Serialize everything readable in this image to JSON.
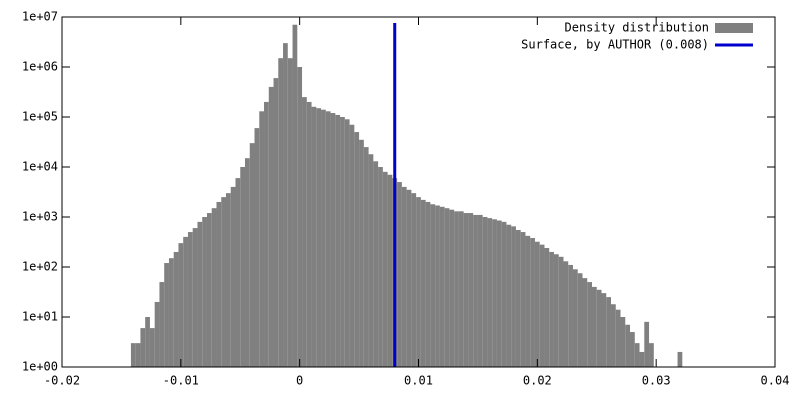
{
  "chart_data": {
    "type": "histogram",
    "bins": [
      -0.0142,
      -0.0138,
      -0.0134,
      -0.013,
      -0.0126,
      -0.0122,
      -0.0118,
      -0.0114,
      -0.011,
      -0.0106,
      -0.0102,
      -0.0098,
      -0.0094,
      -0.009,
      -0.0086,
      -0.0082,
      -0.0078,
      -0.0074,
      -0.007,
      -0.0066,
      -0.0062,
      -0.0058,
      -0.0054,
      -0.005,
      -0.0046,
      -0.0042,
      -0.0038,
      -0.0034,
      -0.003,
      -0.0026,
      -0.0022,
      -0.0018,
      -0.0014,
      -0.001,
      -0.0006,
      -0.0002,
      0.0002,
      0.0006,
      0.001,
      0.0014,
      0.0018,
      0.0022,
      0.0026,
      0.003,
      0.0034,
      0.0038,
      0.0042,
      0.0046,
      0.005,
      0.0054,
      0.0058,
      0.0062,
      0.0066,
      0.007,
      0.0074,
      0.0078,
      0.0082,
      0.0086,
      0.009,
      0.0094,
      0.0098,
      0.0102,
      0.0106,
      0.011,
      0.0114,
      0.0118,
      0.0122,
      0.0126,
      0.013,
      0.0134,
      0.0138,
      0.0142,
      0.0146,
      0.015,
      0.0154,
      0.0158,
      0.0162,
      0.0166,
      0.017,
      0.0174,
      0.0178,
      0.0182,
      0.0186,
      0.019,
      0.0194,
      0.0198,
      0.0202,
      0.0206,
      0.021,
      0.0214,
      0.0218,
      0.0222,
      0.0226,
      0.023,
      0.0234,
      0.0238,
      0.0242,
      0.0246,
      0.025,
      0.0254,
      0.0258,
      0.0262,
      0.0266,
      0.027,
      0.0274,
      0.0278,
      0.0282,
      0.0286,
      0.029,
      0.0294,
      0.0298,
      0.0302,
      0.0306,
      0.031,
      0.0314,
      0.0318,
      0.0322
    ],
    "series": [
      {
        "name": "Density distribution",
        "color": "#808080",
        "values": [
          3,
          3,
          6,
          10,
          6,
          20,
          50,
          120,
          150,
          200,
          300,
          400,
          500,
          600,
          800,
          1000,
          1200,
          1500,
          2000,
          2500,
          3000,
          4000,
          6000,
          10000,
          15000,
          30000,
          60000,
          130000,
          200000,
          400000,
          600000,
          1500000,
          3000000,
          1500000,
          7000000,
          1000000,
          250000,
          200000,
          160000,
          150000,
          140000,
          130000,
          120000,
          110000,
          100000,
          90000,
          70000,
          50000,
          35000,
          25000,
          18000,
          13000,
          10000,
          8000,
          7000,
          6000,
          5000,
          4000,
          3500,
          3000,
          2500,
          2200,
          2000,
          1800,
          1700,
          1600,
          1500,
          1400,
          1300,
          1300,
          1200,
          1200,
          1100,
          1100,
          1000,
          950,
          900,
          850,
          800,
          700,
          650,
          550,
          500,
          420,
          380,
          320,
          280,
          240,
          200,
          180,
          160,
          130,
          110,
          90,
          75,
          60,
          50,
          40,
          35,
          30,
          25,
          18,
          14,
          10,
          7,
          5,
          3,
          2,
          8,
          3,
          0,
          0,
          0,
          0,
          0,
          2
        ]
      }
    ],
    "vline": {
      "name": "Surface, by AUTHOR (0.008)",
      "color": "#0000cc",
      "x": 0.008
    },
    "xlim": [
      -0.02,
      0.04
    ],
    "xticks": [
      -0.02,
      -0.01,
      0,
      0.01,
      0.02,
      0.03,
      0.04
    ],
    "ylim": [
      1,
      10000000
    ],
    "log_y": true,
    "yticks": [
      {
        "value": 1,
        "label": "1e+00"
      },
      {
        "value": 10,
        "label": "1e+01"
      },
      {
        "value": 100,
        "label": "1e+02"
      },
      {
        "value": 1000,
        "label": "1e+03"
      },
      {
        "value": 10000,
        "label": "1e+04"
      },
      {
        "value": 100000,
        "label": "1e+05"
      },
      {
        "value": 1000000,
        "label": "1e+06"
      },
      {
        "value": 10000000,
        "label": "1e+07"
      }
    ],
    "legend": "upper right"
  }
}
